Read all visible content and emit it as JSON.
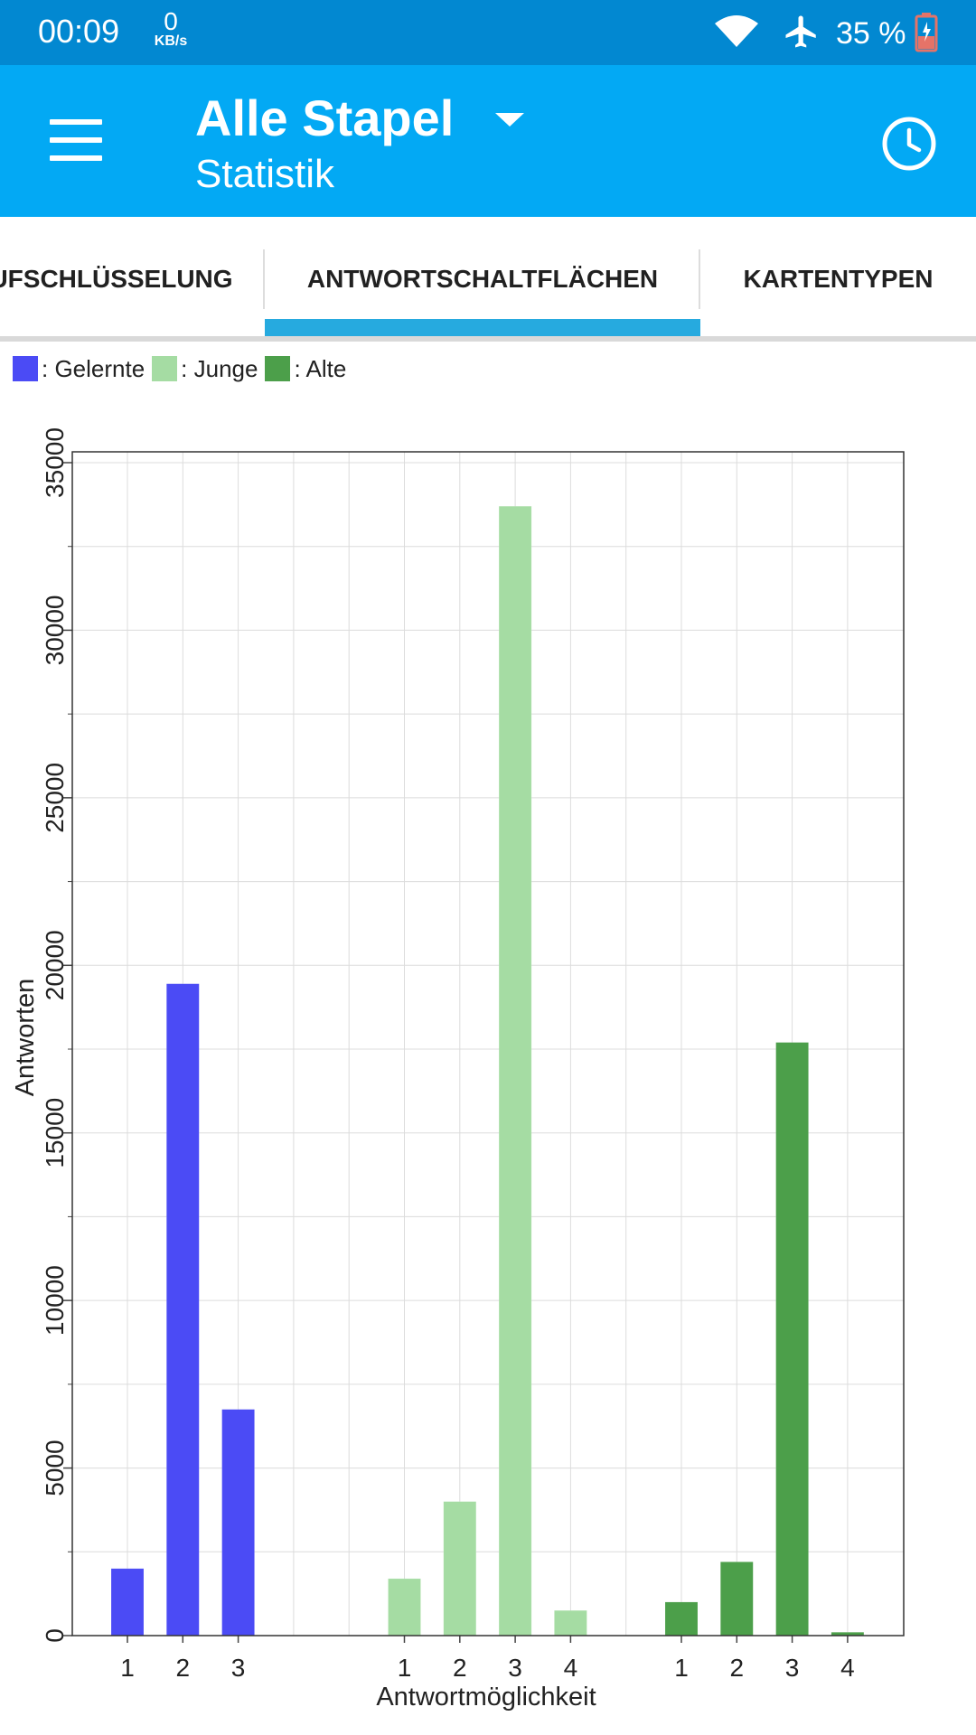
{
  "status_bar": {
    "time": "00:09",
    "net_speed_value": "0",
    "net_speed_unit": "KB/s",
    "battery": "35 %",
    "icons": [
      "wifi-icon",
      "airplane-mode-icon",
      "battery-charging-icon"
    ]
  },
  "app_bar": {
    "title": "Alle Stapel",
    "subtitle": "Statistik",
    "icons": [
      "menu-icon",
      "dropdown-arrow-icon",
      "history-clock-icon"
    ]
  },
  "tabs": [
    {
      "label": "UFSCHLÜSSELUNG",
      "selected": false
    },
    {
      "label": "ANTWORTSCHALTFLÄCHEN",
      "selected": true
    },
    {
      "label": "KARTENTYPEN",
      "selected": false
    }
  ],
  "colors": {
    "status_bar": "#0288d1",
    "app_bar": "#03a9f4",
    "tab_indicator": "#26aadf",
    "learned": "#4b4bf5",
    "young": "#a5dca3",
    "mature": "#4c9f4a"
  },
  "legend": [
    {
      "label": ": Gelernte",
      "color": "#4b4bf5"
    },
    {
      "label": ": Junge",
      "color": "#a5dca3"
    },
    {
      "label": ": Alte",
      "color": "#4c9f4a"
    }
  ],
  "chart_data": {
    "type": "bar",
    "xlabel": "Antwortmöglichkeit",
    "ylabel": "Antworten",
    "ylim": [
      0,
      35000
    ],
    "yticks": [
      0,
      5000,
      10000,
      15000,
      20000,
      25000,
      30000,
      35000
    ],
    "grid": true,
    "legend_position": "top-left",
    "series": [
      {
        "name": "Gelernte",
        "color": "#4b4bf5",
        "categories": [
          "1",
          "2",
          "3"
        ],
        "values": [
          2000,
          19450,
          6750
        ]
      },
      {
        "name": "Junge",
        "color": "#a5dca3",
        "categories": [
          "1",
          "2",
          "3",
          "4"
        ],
        "values": [
          1700,
          4000,
          33700,
          750
        ]
      },
      {
        "name": "Alte",
        "color": "#4c9f4a",
        "categories": [
          "1",
          "2",
          "3",
          "4"
        ],
        "values": [
          1000,
          2200,
          17700,
          100
        ]
      }
    ]
  }
}
